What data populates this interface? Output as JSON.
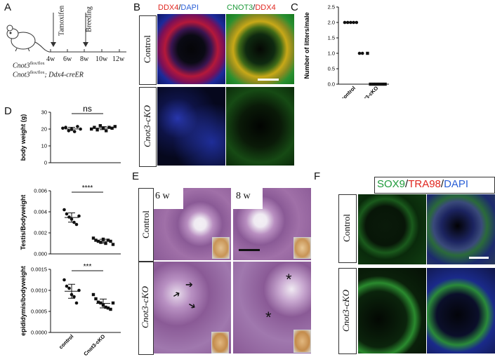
{
  "panels": {
    "a": "A",
    "b": "B",
    "c": "C",
    "d": "D",
    "e": "E",
    "f": "F"
  },
  "panelA": {
    "tamoxifen": "Tamoxifen",
    "breeding": "Breeding",
    "ticks": [
      "4w",
      "6w",
      "8w",
      "10w",
      "12w"
    ],
    "genotype1": "Cnot3",
    "genotype1_sup": "flox/flox",
    "genotype2": "Cnot3",
    "genotype2_sup": "flox/flox",
    "genotype2_suffix": "; Ddx4-creER"
  },
  "panelB": {
    "stain1_a": "DDX4",
    "stain1_sep": "/",
    "stain1_b": "DAPI",
    "stain2_a": "CNOT3",
    "stain2_sep": "/",
    "stain2_b": "DDX4",
    "row1": "Control",
    "row2": "Cnot3-cKO"
  },
  "panelE": {
    "col1": "6 w",
    "col2": "8 w",
    "row1": "Control",
    "row2": "Cnot3-cKO",
    "star": "*"
  },
  "panelF": {
    "stain_a": "SOX9",
    "stain_sep1": "/",
    "stain_b": "TRA98",
    "stain_sep2": "/",
    "stain_c": "DAPI",
    "row1": "Control",
    "row2": "Cnot3-cKO"
  },
  "colors": {
    "red": "#e0261f",
    "blue": "#2a5fd6",
    "green": "#1e9a3a"
  },
  "chart_data": [
    {
      "type": "scatter",
      "ylabel": "Number of litters/male",
      "categories": [
        "control",
        "Cnot3-cKO"
      ],
      "ylim": [
        0.0,
        2.5
      ],
      "yticks": [
        "0.0",
        "0.5",
        "1.0",
        "1.5",
        "2.0",
        "2.5"
      ],
      "series": [
        {
          "values": [
            2,
            2,
            2,
            2,
            2,
            1,
            1
          ]
        },
        {
          "values": [
            1,
            0,
            0,
            0,
            0,
            0,
            0
          ]
        }
      ]
    },
    {
      "type": "scatter",
      "ylabel": "body weight (g)",
      "categories": [
        "control",
        "Cnot3-cKO"
      ],
      "ylim": [
        0,
        30
      ],
      "yticks": [
        "0",
        "10",
        "20",
        "30"
      ],
      "annotation": "ns",
      "series": [
        {
          "values": [
            20.5,
            21,
            19,
            20,
            18.5,
            21.5,
            20
          ]
        },
        {
          "values": [
            20,
            21,
            19.5,
            22,
            20.5,
            19,
            21,
            20.5,
            21.5
          ]
        }
      ]
    },
    {
      "type": "scatter",
      "ylabel": "Testis/Bodyweight",
      "categories": [
        "control",
        "Cnot3-cKO"
      ],
      "ylim": [
        0.0,
        0.006
      ],
      "yticks": [
        "0.000",
        "0.002",
        "0.004",
        "0.006"
      ],
      "annotation": "****",
      "series": [
        {
          "values": [
            0.0042,
            0.0038,
            0.0035,
            0.0033,
            0.003,
            0.0028,
            0.0036
          ]
        },
        {
          "values": [
            0.0015,
            0.0013,
            0.0012,
            0.0011,
            0.0014,
            0.001,
            0.0013,
            0.0012,
            0.0009
          ]
        }
      ]
    },
    {
      "type": "scatter",
      "ylabel": "epididymis/bodyweight",
      "categories": [
        "control",
        "Cnot3-cKO"
      ],
      "ylim": [
        0.0,
        0.0015
      ],
      "yticks": [
        "0.0000",
        "0.0005",
        "0.0010",
        "0.0015"
      ],
      "annotation": "***",
      "series": [
        {
          "values": [
            0.00125,
            0.0011,
            0.00105,
            0.0009,
            0.00085,
            0.0007,
            0.001
          ]
        },
        {
          "values": [
            0.0009,
            0.0008,
            0.00072,
            0.0007,
            0.00065,
            0.0006,
            0.00058,
            0.00055,
            0.0007
          ]
        }
      ]
    }
  ]
}
